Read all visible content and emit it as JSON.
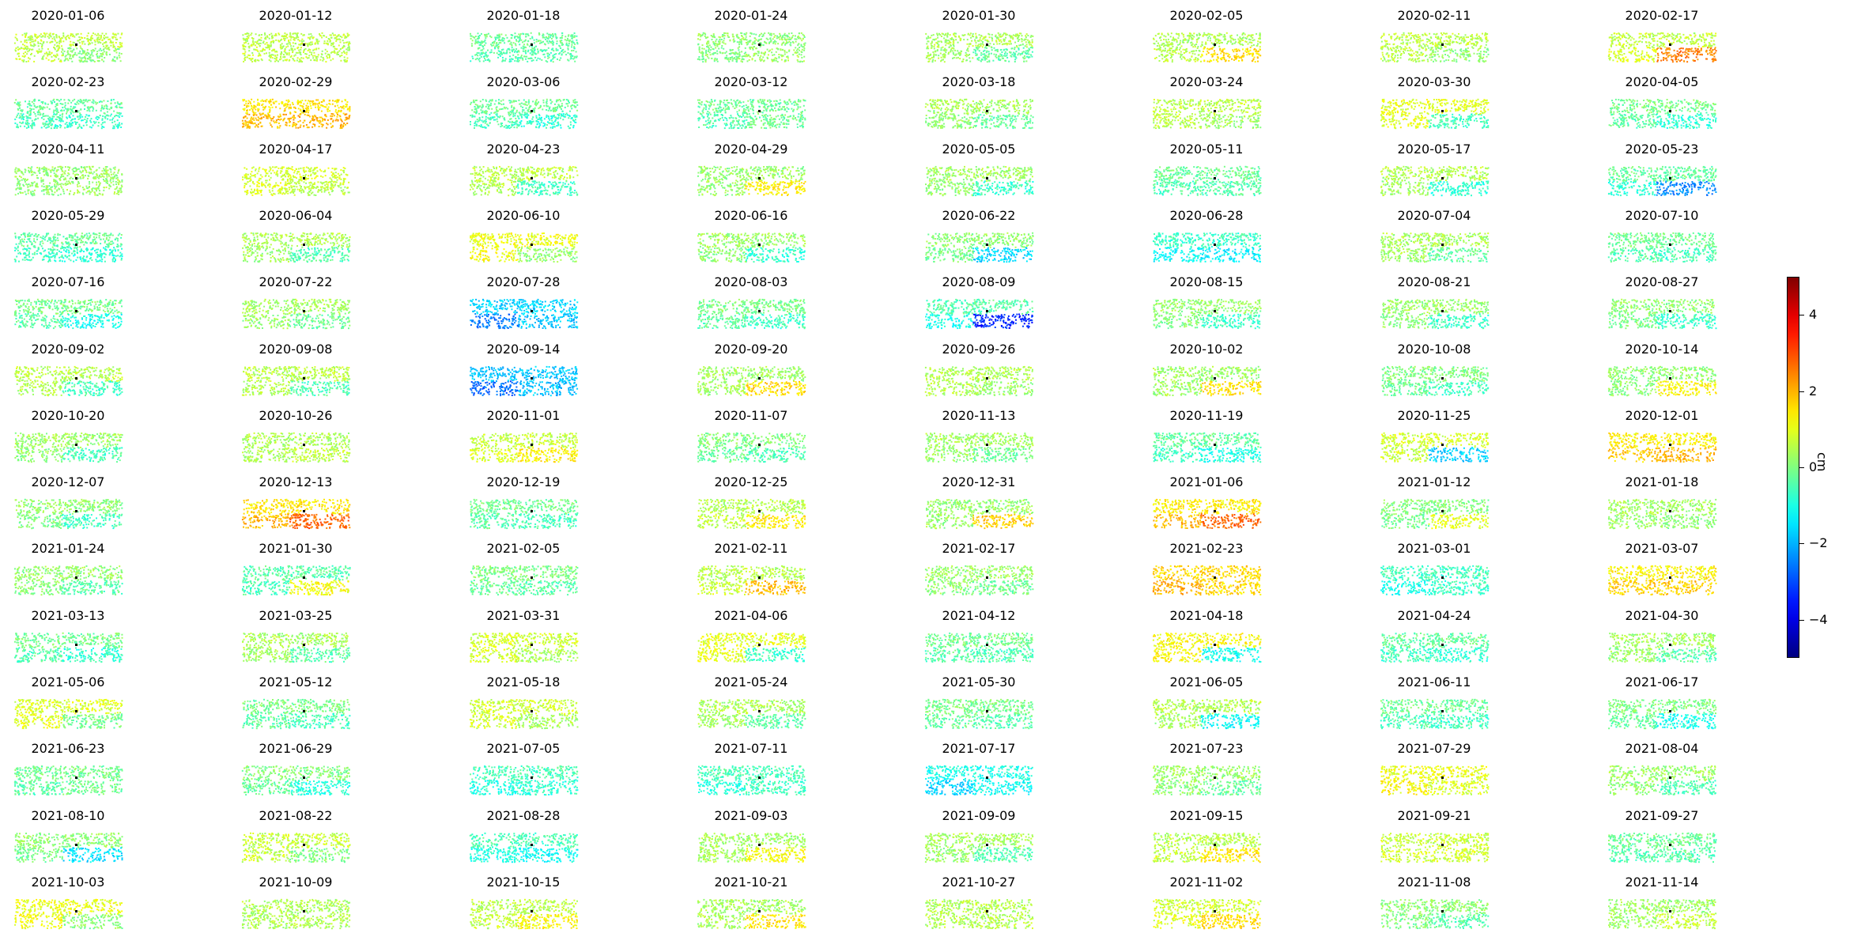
{
  "chart_data": {
    "type": "heatmap",
    "colormap": "jet",
    "colorbar": {
      "label": "cm",
      "range": [
        -5,
        5
      ],
      "ticks": [
        4,
        2,
        0,
        -2,
        -4
      ],
      "tick_labels": [
        "4",
        "2",
        "0",
        "−2",
        "−4"
      ]
    },
    "grid_layout": {
      "rows": 14,
      "cols": 8
    },
    "panels": [
      {
        "date": "2020-01-06",
        "west": 0.7,
        "east": 0.1
      },
      {
        "date": "2020-01-12",
        "west": 0.6,
        "east": 0.6
      },
      {
        "date": "2020-01-18",
        "west": -0.5,
        "east": -0.4
      },
      {
        "date": "2020-01-24",
        "west": 0.0,
        "east": 0.3
      },
      {
        "date": "2020-01-30",
        "west": 0.4,
        "east": -0.3
      },
      {
        "date": "2020-02-05",
        "west": 0.4,
        "east": 1.6
      },
      {
        "date": "2020-02-11",
        "west": 0.6,
        "east": 0.2
      },
      {
        "date": "2020-02-17",
        "west": 0.7,
        "east": 2.5
      },
      {
        "date": "2020-02-23",
        "west": -0.6,
        "east": -0.7
      },
      {
        "date": "2020-02-29",
        "west": 1.9,
        "east": 2.0
      },
      {
        "date": "2020-03-06",
        "west": -0.5,
        "east": -0.8
      },
      {
        "date": "2020-03-12",
        "west": -0.5,
        "east": -0.2
      },
      {
        "date": "2020-03-18",
        "west": 0.3,
        "east": -0.3
      },
      {
        "date": "2020-03-24",
        "west": 0.6,
        "east": 0.3
      },
      {
        "date": "2020-03-30",
        "west": 1.2,
        "east": -0.6
      },
      {
        "date": "2020-04-05",
        "west": -0.3,
        "east": -0.8
      },
      {
        "date": "2020-04-11",
        "west": 0.1,
        "east": 0.3
      },
      {
        "date": "2020-04-17",
        "west": 1.0,
        "east": 0.6
      },
      {
        "date": "2020-04-23",
        "west": 0.6,
        "east": -0.6
      },
      {
        "date": "2020-04-29",
        "west": 0.1,
        "east": 1.4
      },
      {
        "date": "2020-05-05",
        "west": 0.3,
        "east": -0.7
      },
      {
        "date": "2020-05-11",
        "west": -0.5,
        "east": -0.4
      },
      {
        "date": "2020-05-17",
        "west": 0.5,
        "east": -0.8
      },
      {
        "date": "2020-05-23",
        "west": -0.6,
        "east": -2.4
      },
      {
        "date": "2020-05-29",
        "west": -0.6,
        "east": -0.8
      },
      {
        "date": "2020-06-04",
        "west": 0.4,
        "east": -0.5
      },
      {
        "date": "2020-06-10",
        "west": 1.3,
        "east": 0.2
      },
      {
        "date": "2020-06-16",
        "west": 0.2,
        "east": -0.8
      },
      {
        "date": "2020-06-22",
        "west": 0.0,
        "east": -1.6
      },
      {
        "date": "2020-06-28",
        "west": -1.2,
        "east": -1.4
      },
      {
        "date": "2020-07-04",
        "west": 0.4,
        "east": -0.3
      },
      {
        "date": "2020-07-10",
        "west": -0.4,
        "east": -0.6
      },
      {
        "date": "2020-07-16",
        "west": -0.3,
        "east": -1.1
      },
      {
        "date": "2020-07-22",
        "west": 0.3,
        "east": -0.2
      },
      {
        "date": "2020-07-28",
        "west": -2.6,
        "east": -1.8
      },
      {
        "date": "2020-08-03",
        "west": -0.3,
        "east": -0.7
      },
      {
        "date": "2020-08-09",
        "west": -0.8,
        "east": -3.4
      },
      {
        "date": "2020-08-15",
        "west": 0.1,
        "east": -0.7
      },
      {
        "date": "2020-08-21",
        "west": 0.2,
        "east": -0.7
      },
      {
        "date": "2020-08-27",
        "west": 0.0,
        "east": -0.7
      },
      {
        "date": "2020-09-02",
        "west": 0.6,
        "east": -0.6
      },
      {
        "date": "2020-09-08",
        "west": 0.6,
        "east": -0.5
      },
      {
        "date": "2020-09-14",
        "west": -2.8,
        "east": -1.9
      },
      {
        "date": "2020-09-20",
        "west": 0.2,
        "east": 1.6
      },
      {
        "date": "2020-09-26",
        "west": 0.5,
        "east": 0.3
      },
      {
        "date": "2020-10-02",
        "west": 0.2,
        "east": 1.5
      },
      {
        "date": "2020-10-08",
        "west": -0.2,
        "east": -0.6
      },
      {
        "date": "2020-10-14",
        "west": 0.0,
        "east": 1.3
      },
      {
        "date": "2020-10-20",
        "west": 0.2,
        "east": -0.5
      },
      {
        "date": "2020-10-26",
        "west": 0.4,
        "east": 0.6
      },
      {
        "date": "2020-11-01",
        "west": 0.8,
        "east": 1.4
      },
      {
        "date": "2020-11-07",
        "west": -0.2,
        "east": -0.5
      },
      {
        "date": "2020-11-13",
        "west": 0.3,
        "east": -0.2
      },
      {
        "date": "2020-11-19",
        "west": -0.6,
        "east": -1.0
      },
      {
        "date": "2020-11-25",
        "west": 1.0,
        "east": -1.7
      },
      {
        "date": "2020-12-01",
        "west": 1.7,
        "east": 2.0
      },
      {
        "date": "2020-12-07",
        "west": 0.0,
        "east": -0.6
      },
      {
        "date": "2020-12-13",
        "west": 1.9,
        "east": 2.8
      },
      {
        "date": "2020-12-19",
        "west": -0.4,
        "east": -0.6
      },
      {
        "date": "2020-12-25",
        "west": 0.5,
        "east": 1.4
      },
      {
        "date": "2020-12-31",
        "west": 0.1,
        "east": 1.7
      },
      {
        "date": "2021-01-06",
        "west": 1.8,
        "east": 2.8
      },
      {
        "date": "2021-01-12",
        "west": -0.2,
        "east": 1.0
      },
      {
        "date": "2021-01-18",
        "west": 0.3,
        "east": 0.1
      },
      {
        "date": "2021-01-24",
        "west": 0.1,
        "east": -0.4
      },
      {
        "date": "2021-01-30",
        "west": -0.8,
        "east": 1.2
      },
      {
        "date": "2021-02-05",
        "west": -0.2,
        "east": -0.4
      },
      {
        "date": "2021-02-11",
        "west": 0.6,
        "east": 1.9
      },
      {
        "date": "2021-02-17",
        "west": 0.2,
        "east": -0.2
      },
      {
        "date": "2021-02-23",
        "west": 2.1,
        "east": 1.6
      },
      {
        "date": "2021-03-01",
        "west": -1.1,
        "east": -0.7
      },
      {
        "date": "2021-03-07",
        "west": 1.7,
        "east": 1.7
      },
      {
        "date": "2021-03-13",
        "west": -0.4,
        "east": -0.8
      },
      {
        "date": "2021-03-25",
        "west": 0.4,
        "east": -0.4
      },
      {
        "date": "2021-03-31",
        "west": 0.9,
        "east": 0.4
      },
      {
        "date": "2021-04-06",
        "west": 1.2,
        "east": -0.7
      },
      {
        "date": "2021-04-12",
        "west": -0.4,
        "east": -0.5
      },
      {
        "date": "2021-04-18",
        "west": 1.6,
        "east": -1.1
      },
      {
        "date": "2021-04-24",
        "west": -0.6,
        "east": -0.8
      },
      {
        "date": "2021-04-30",
        "west": 0.3,
        "east": -0.4
      },
      {
        "date": "2021-05-06",
        "west": 1.1,
        "east": -0.1
      },
      {
        "date": "2021-05-12",
        "west": -0.3,
        "east": -0.6
      },
      {
        "date": "2021-05-18",
        "west": 0.9,
        "east": 0.4
      },
      {
        "date": "2021-05-24",
        "west": 0.4,
        "east": -0.4
      },
      {
        "date": "2021-05-30",
        "west": -0.3,
        "east": -0.4
      },
      {
        "date": "2021-06-05",
        "west": 0.5,
        "east": -1.2
      },
      {
        "date": "2021-06-11",
        "west": -0.5,
        "east": -0.6
      },
      {
        "date": "2021-06-17",
        "west": -0.2,
        "east": -1.1
      },
      {
        "date": "2021-06-23",
        "west": -0.4,
        "east": -0.2
      },
      {
        "date": "2021-06-29",
        "west": -0.2,
        "east": -0.9
      },
      {
        "date": "2021-07-05",
        "west": -1.0,
        "east": -0.8
      },
      {
        "date": "2021-07-11",
        "west": -1.0,
        "east": -0.6
      },
      {
        "date": "2021-07-17",
        "west": -1.7,
        "east": -1.2
      },
      {
        "date": "2021-07-23",
        "west": 0.2,
        "east": -0.3
      },
      {
        "date": "2021-07-29",
        "west": 1.3,
        "east": 0.9
      },
      {
        "date": "2021-08-04",
        "west": 0.2,
        "east": -0.5
      },
      {
        "date": "2021-08-10",
        "west": 0.0,
        "east": -1.5
      },
      {
        "date": "2021-08-22",
        "west": 0.8,
        "east": 0.0
      },
      {
        "date": "2021-08-28",
        "west": -1.0,
        "east": -1.1
      },
      {
        "date": "2021-09-03",
        "west": 0.3,
        "east": 1.2
      },
      {
        "date": "2021-09-09",
        "west": 0.3,
        "east": -0.4
      },
      {
        "date": "2021-09-15",
        "west": 0.6,
        "east": 1.5
      },
      {
        "date": "2021-09-21",
        "west": 0.8,
        "east": 0.8
      },
      {
        "date": "2021-09-27",
        "west": -0.5,
        "east": -0.4
      },
      {
        "date": "2021-10-03",
        "west": 1.3,
        "east": 0.1
      },
      {
        "date": "2021-10-09",
        "west": 0.4,
        "east": 0.5
      },
      {
        "date": "2021-10-15",
        "west": 0.6,
        "east": 1.3
      },
      {
        "date": "2021-10-21",
        "west": 0.3,
        "east": 1.5
      },
      {
        "date": "2021-10-27",
        "west": 0.5,
        "east": 0.5
      },
      {
        "date": "2021-11-02",
        "west": 0.9,
        "east": 1.6
      },
      {
        "date": "2021-11-08",
        "west": 0.0,
        "east": -0.4
      },
      {
        "date": "2021-11-14",
        "west": 0.2,
        "east": 0.7
      }
    ]
  }
}
